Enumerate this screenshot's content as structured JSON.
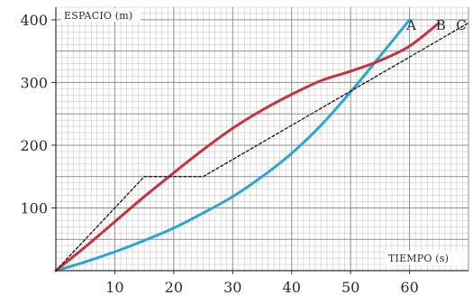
{
  "chart_data": {
    "type": "line",
    "xlabel": "TIEMPO (s)",
    "ylabel": "ESPACIO (m)",
    "xlim": [
      0,
      70
    ],
    "ylim": [
      0,
      420
    ],
    "x_ticks": [
      10,
      20,
      30,
      40,
      50,
      60
    ],
    "y_ticks": [
      100,
      200,
      300,
      400
    ],
    "grid": true,
    "grid_minor_x": 1,
    "grid_minor_y": 10,
    "series": [
      {
        "name": "A",
        "color": "#29a6d6",
        "style": "solid",
        "x": [
          0,
          5,
          10,
          15,
          20,
          25,
          30,
          35,
          40,
          45,
          50,
          55,
          60
        ],
        "y": [
          0,
          14,
          30,
          48,
          68,
          92,
          118,
          150,
          187,
          232,
          285,
          342,
          400
        ]
      },
      {
        "name": "B",
        "color": "#c8323e",
        "style": "solid",
        "x": [
          0,
          5,
          10,
          15,
          20,
          25,
          30,
          35,
          40,
          45,
          50,
          55,
          60,
          65
        ],
        "y": [
          0,
          38,
          78,
          118,
          156,
          193,
          227,
          256,
          281,
          303,
          318,
          335,
          358,
          395
        ]
      },
      {
        "name": "C",
        "color": "#222222",
        "style": "dashed",
        "x": [
          0,
          15,
          25,
          70
        ],
        "y": [
          0,
          150,
          150,
          395
        ]
      }
    ]
  }
}
